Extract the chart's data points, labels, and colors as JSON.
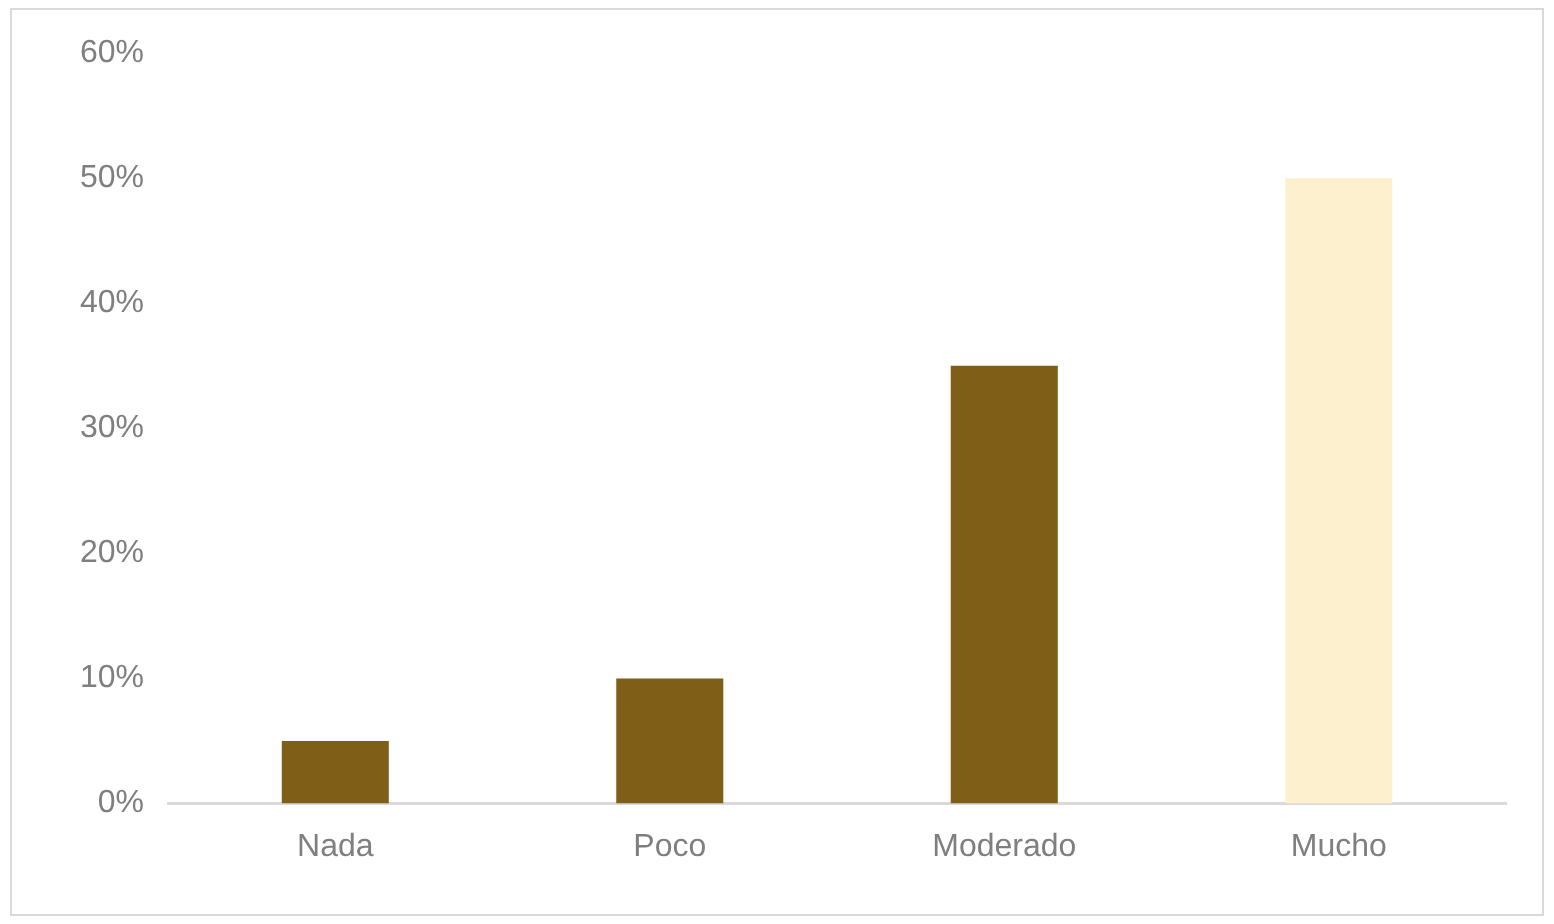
{
  "chart_data": {
    "type": "bar",
    "categories": [
      "Nada",
      "Poco",
      "Moderado",
      "Mucho"
    ],
    "values": [
      5,
      10,
      35,
      50
    ],
    "colors": [
      "#7f5f17",
      "#7f5f17",
      "#7f5f17",
      "#fdf0cf"
    ],
    "ylim": [
      0,
      60
    ],
    "yticks": [
      {
        "value": 0,
        "label": "0%"
      },
      {
        "value": 10,
        "label": "10%"
      },
      {
        "value": 20,
        "label": "20%"
      },
      {
        "value": 30,
        "label": "30%"
      },
      {
        "value": 40,
        "label": "40%"
      },
      {
        "value": 50,
        "label": "50%"
      },
      {
        "value": 60,
        "label": "60%"
      }
    ],
    "grid": false,
    "legend": false
  }
}
